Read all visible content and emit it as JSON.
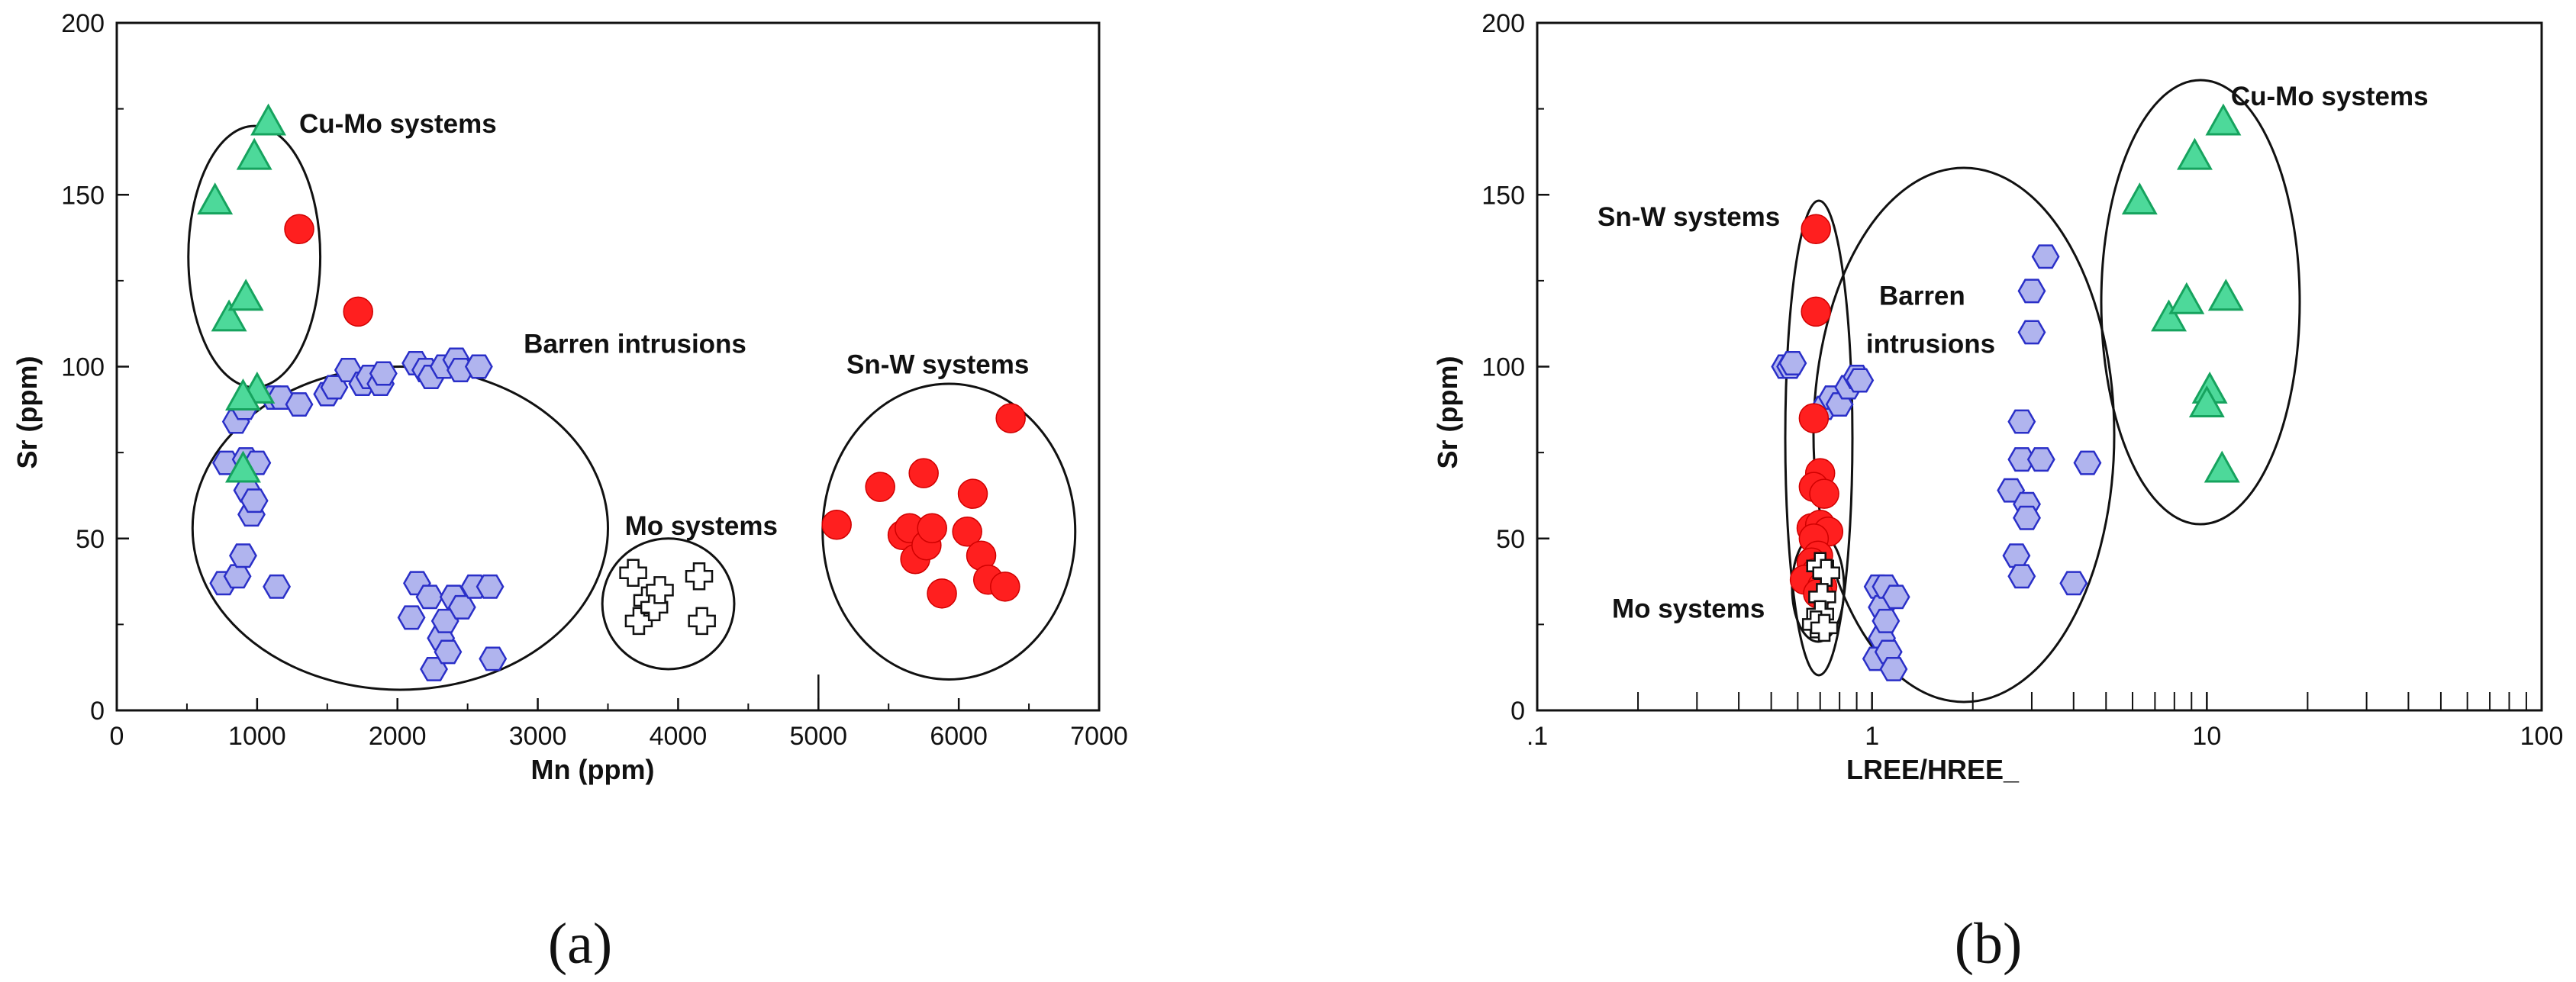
{
  "chart_data": [
    {
      "type": "scatter",
      "panel_label": "(a)",
      "xlabel": "Mn (ppm)",
      "ylabel": "Sr (ppm)",
      "xlim": [
        0,
        7000
      ],
      "ylim": [
        0,
        200
      ],
      "x_scale": "linear",
      "x_ticks": [
        "0",
        "1000",
        "2000",
        "3000",
        "4000",
        "5000",
        "6000",
        "7000"
      ],
      "y_ticks": [
        "0",
        "50",
        "100",
        "150",
        "200"
      ],
      "grid": false,
      "series": [
        {
          "name": "Cu-Mo systems",
          "marker": "triangle",
          "color": "#4dd99a",
          "points": [
            [
              700,
              148
            ],
            [
              800,
              114
            ],
            [
              920,
              120
            ],
            [
              980,
              161
            ],
            [
              1080,
              171
            ],
            [
              1000,
              93
            ],
            [
              900,
              91
            ],
            [
              900,
              70
            ]
          ]
        },
        {
          "name": "Sn-W systems",
          "marker": "circle",
          "color": "#ff1f1f",
          "points": [
            [
              1300,
              140
            ],
            [
              1720,
              116
            ],
            [
              5130,
              54
            ],
            [
              5440,
              65
            ],
            [
              5600,
              51
            ],
            [
              5650,
              53
            ],
            [
              5690,
              44
            ],
            [
              5750,
              69
            ],
            [
              5770,
              48
            ],
            [
              5810,
              53
            ],
            [
              5880,
              34
            ],
            [
              6060,
              52
            ],
            [
              6100,
              63
            ],
            [
              6160,
              45
            ],
            [
              6210,
              38
            ],
            [
              6330,
              36
            ],
            [
              6370,
              85
            ]
          ]
        },
        {
          "name": "Barren intrusions",
          "marker": "hexagon",
          "color": "#b0b4ee",
          "points": [
            [
              780,
              72
            ],
            [
              850,
              84
            ],
            [
              910,
              88
            ],
            [
              920,
              73
            ],
            [
              930,
              64
            ],
            [
              960,
              57
            ],
            [
              980,
              61
            ],
            [
              1000,
              72
            ],
            [
              760,
              37
            ],
            [
              860,
              39
            ],
            [
              900,
              45
            ],
            [
              1140,
              36
            ],
            [
              1120,
              91
            ],
            [
              1170,
              91
            ],
            [
              1300,
              89
            ],
            [
              1500,
              92
            ],
            [
              1550,
              94
            ],
            [
              1650,
              99
            ],
            [
              1750,
              95
            ],
            [
              1800,
              97
            ],
            [
              1880,
              95
            ],
            [
              1900,
              98
            ],
            [
              2130,
              101
            ],
            [
              2200,
              99
            ],
            [
              2240,
              97
            ],
            [
              2330,
              100
            ],
            [
              2420,
              102
            ],
            [
              2450,
              99
            ],
            [
              2580,
              100
            ],
            [
              2100,
              27
            ],
            [
              2140,
              37
            ],
            [
              2230,
              33
            ],
            [
              2260,
              12
            ],
            [
              2310,
              21
            ],
            [
              2340,
              26
            ],
            [
              2360,
              17
            ],
            [
              2400,
              33
            ],
            [
              2460,
              30
            ],
            [
              2550,
              36
            ],
            [
              2660,
              36
            ],
            [
              2680,
              15
            ]
          ]
        },
        {
          "name": "Mo systems",
          "marker": "cross",
          "color": "#ffffff",
          "points": [
            [
              3680,
              40
            ],
            [
              3720,
              26
            ],
            [
              3780,
              32
            ],
            [
              3830,
              30
            ],
            [
              3870,
              35
            ],
            [
              4150,
              39
            ],
            [
              4170,
              26
            ]
          ]
        }
      ],
      "annotations": [
        {
          "text": "Cu-Mo systems",
          "x": 1300,
          "y": 168
        },
        {
          "text": "Barren intrusions",
          "x": 2900,
          "y": 104
        },
        {
          "text": "Sn-W systems",
          "x": 5200,
          "y": 98
        },
        {
          "text": "Mo systems",
          "x": 3620,
          "y": 51
        }
      ]
    },
    {
      "type": "scatter",
      "panel_label": "(b)",
      "xlabel": "LREE/HREE_",
      "ylabel": "Sr (ppm)",
      "xlim": [
        0.1,
        100
      ],
      "ylim": [
        0,
        200
      ],
      "x_scale": "log",
      "x_ticks": [
        ".1",
        "1",
        "10",
        "100"
      ],
      "y_ticks": [
        "0",
        "50",
        "100",
        "150",
        "200"
      ],
      "grid": false,
      "series": [
        {
          "name": "Cu-Mo systems",
          "marker": "triangle",
          "color": "#4dd99a",
          "points": [
            [
              6.3,
              148
            ],
            [
              7.7,
              114
            ],
            [
              8.7,
              119
            ],
            [
              9.2,
              161
            ],
            [
              11.2,
              171
            ],
            [
              11.4,
              120
            ],
            [
              10.2,
              93
            ],
            [
              10.0,
              89
            ],
            [
              11.1,
              70
            ]
          ]
        },
        {
          "name": "Sn-W systems",
          "marker": "circle",
          "color": "#ff1f1f",
          "points": [
            [
              0.68,
              140
            ],
            [
              0.68,
              116
            ],
            [
              0.67,
              85
            ],
            [
              0.7,
              69
            ],
            [
              0.67,
              65
            ],
            [
              0.72,
              63
            ],
            [
              0.66,
              53
            ],
            [
              0.7,
              54
            ],
            [
              0.74,
              52
            ],
            [
              0.67,
              50
            ],
            [
              0.69,
              45
            ],
            [
              0.66,
              43
            ],
            [
              0.68,
              40
            ],
            [
              0.63,
              38
            ],
            [
              0.71,
              36
            ],
            [
              0.69,
              34
            ]
          ]
        },
        {
          "name": "Barren intrusions",
          "marker": "hexagon",
          "color": "#b0b4ee",
          "points": [
            [
              0.55,
              100
            ],
            [
              0.57,
              100
            ],
            [
              0.58,
              101
            ],
            [
              0.72,
              88
            ],
            [
              0.76,
              91
            ],
            [
              0.8,
              89
            ],
            [
              0.85,
              94
            ],
            [
              0.9,
              97
            ],
            [
              0.92,
              96
            ],
            [
              1.04,
              36
            ],
            [
              1.07,
              30
            ],
            [
              1.1,
              36
            ],
            [
              1.07,
              21
            ],
            [
              1.03,
              15
            ],
            [
              1.1,
              26
            ],
            [
              1.12,
              17
            ],
            [
              1.16,
              12
            ],
            [
              1.18,
              33
            ],
            [
              2.8,
              84
            ],
            [
              2.8,
              73
            ],
            [
              2.6,
              64
            ],
            [
              2.9,
              60
            ],
            [
              2.9,
              56
            ],
            [
              2.7,
              45
            ],
            [
              2.8,
              39
            ],
            [
              3.2,
              73
            ],
            [
              3.0,
              122
            ],
            [
              3.0,
              110
            ],
            [
              3.3,
              132
            ],
            [
              4.4,
              72
            ],
            [
              4.0,
              37
            ]
          ]
        },
        {
          "name": "Mo systems",
          "marker": "cross",
          "color": "#ffffff",
          "points": [
            [
              0.7,
              42
            ],
            [
              0.73,
              40
            ],
            [
              0.71,
              33
            ],
            [
              0.7,
              28
            ],
            [
              0.68,
              25
            ],
            [
              0.72,
              24
            ]
          ]
        }
      ],
      "annotations": [
        {
          "text": "Sn-W systems",
          "x": 0.095,
          "y": 141
        },
        {
          "text": "Barren",
          "x": 1.05,
          "y": 118
        },
        {
          "text": "intrusions",
          "x": 0.96,
          "y": 104
        },
        {
          "text": "Cu-Mo systems",
          "x": 11.8,
          "y": 176
        },
        {
          "text": "Mo systems",
          "x": 0.095,
          "y": 27
        }
      ]
    }
  ]
}
